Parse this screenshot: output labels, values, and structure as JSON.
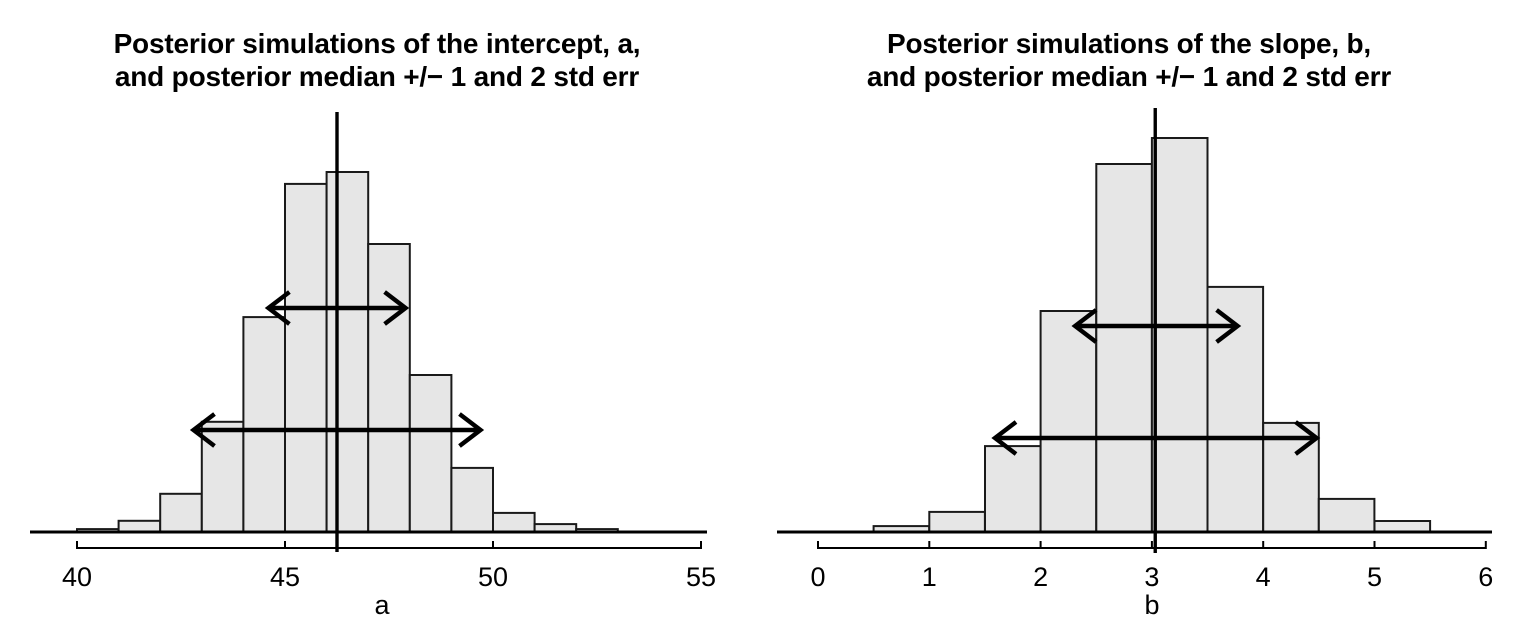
{
  "figure": {
    "background": "#ffffff",
    "description_left": "Histogram of posterior simulations of the intercept a with posterior median line and +/- 1 and 2 std err arrows",
    "description_right": "Histogram of posterior simulations of the slope b with posterior median line and +/- 1 and 2 std err arrows"
  },
  "colors": {
    "bar_fill": "#e6e6e6",
    "bar_stroke": "#1a1a1a",
    "line": "#000000"
  },
  "chart_data": [
    {
      "type": "bar",
      "subtype": "histogram",
      "title_line1": "Posterior simulations of the intercept, a,",
      "title_line2": "and posterior median +/− 1 and 2 std err",
      "xlabel": "a",
      "ylabel": "",
      "xlim": [
        40,
        55
      ],
      "x_ticks": [
        40,
        45,
        50,
        55
      ],
      "grid": false,
      "legend": "none",
      "bin_width": 1,
      "bin_edges": [
        40,
        41,
        42,
        43,
        44,
        45,
        46,
        47,
        48,
        49,
        50,
        51,
        52,
        53
      ],
      "bar_heights_rel": [
        0.008,
        0.031,
        0.106,
        0.306,
        0.597,
        0.967,
        1.0,
        0.8,
        0.436,
        0.178,
        0.053,
        0.022,
        0.008
      ],
      "median": 46.25,
      "se1_interval": [
        44.6,
        47.9
      ],
      "se2_interval": [
        42.8,
        49.7
      ]
    },
    {
      "type": "bar",
      "subtype": "histogram",
      "title_line1": "Posterior simulations of the slope, b,",
      "title_line2": "and posterior median +/− 1 and 2 std err",
      "xlabel": "b",
      "ylabel": "",
      "xlim": [
        0,
        6
      ],
      "x_ticks": [
        0,
        1,
        2,
        3,
        4,
        5,
        6
      ],
      "grid": false,
      "legend": "none",
      "bin_width": 0.5,
      "bin_edges": [
        0.5,
        1.0,
        1.5,
        2.0,
        2.5,
        3.0,
        3.5,
        4.0,
        4.5,
        5.0,
        5.5
      ],
      "bar_heights_rel": [
        0.015,
        0.051,
        0.218,
        0.561,
        0.934,
        1.0,
        0.622,
        0.277,
        0.084,
        0.028
      ],
      "median": 3.03,
      "se1_interval": [
        2.31,
        3.77
      ],
      "se2_interval": [
        1.59,
        4.48
      ]
    }
  ]
}
